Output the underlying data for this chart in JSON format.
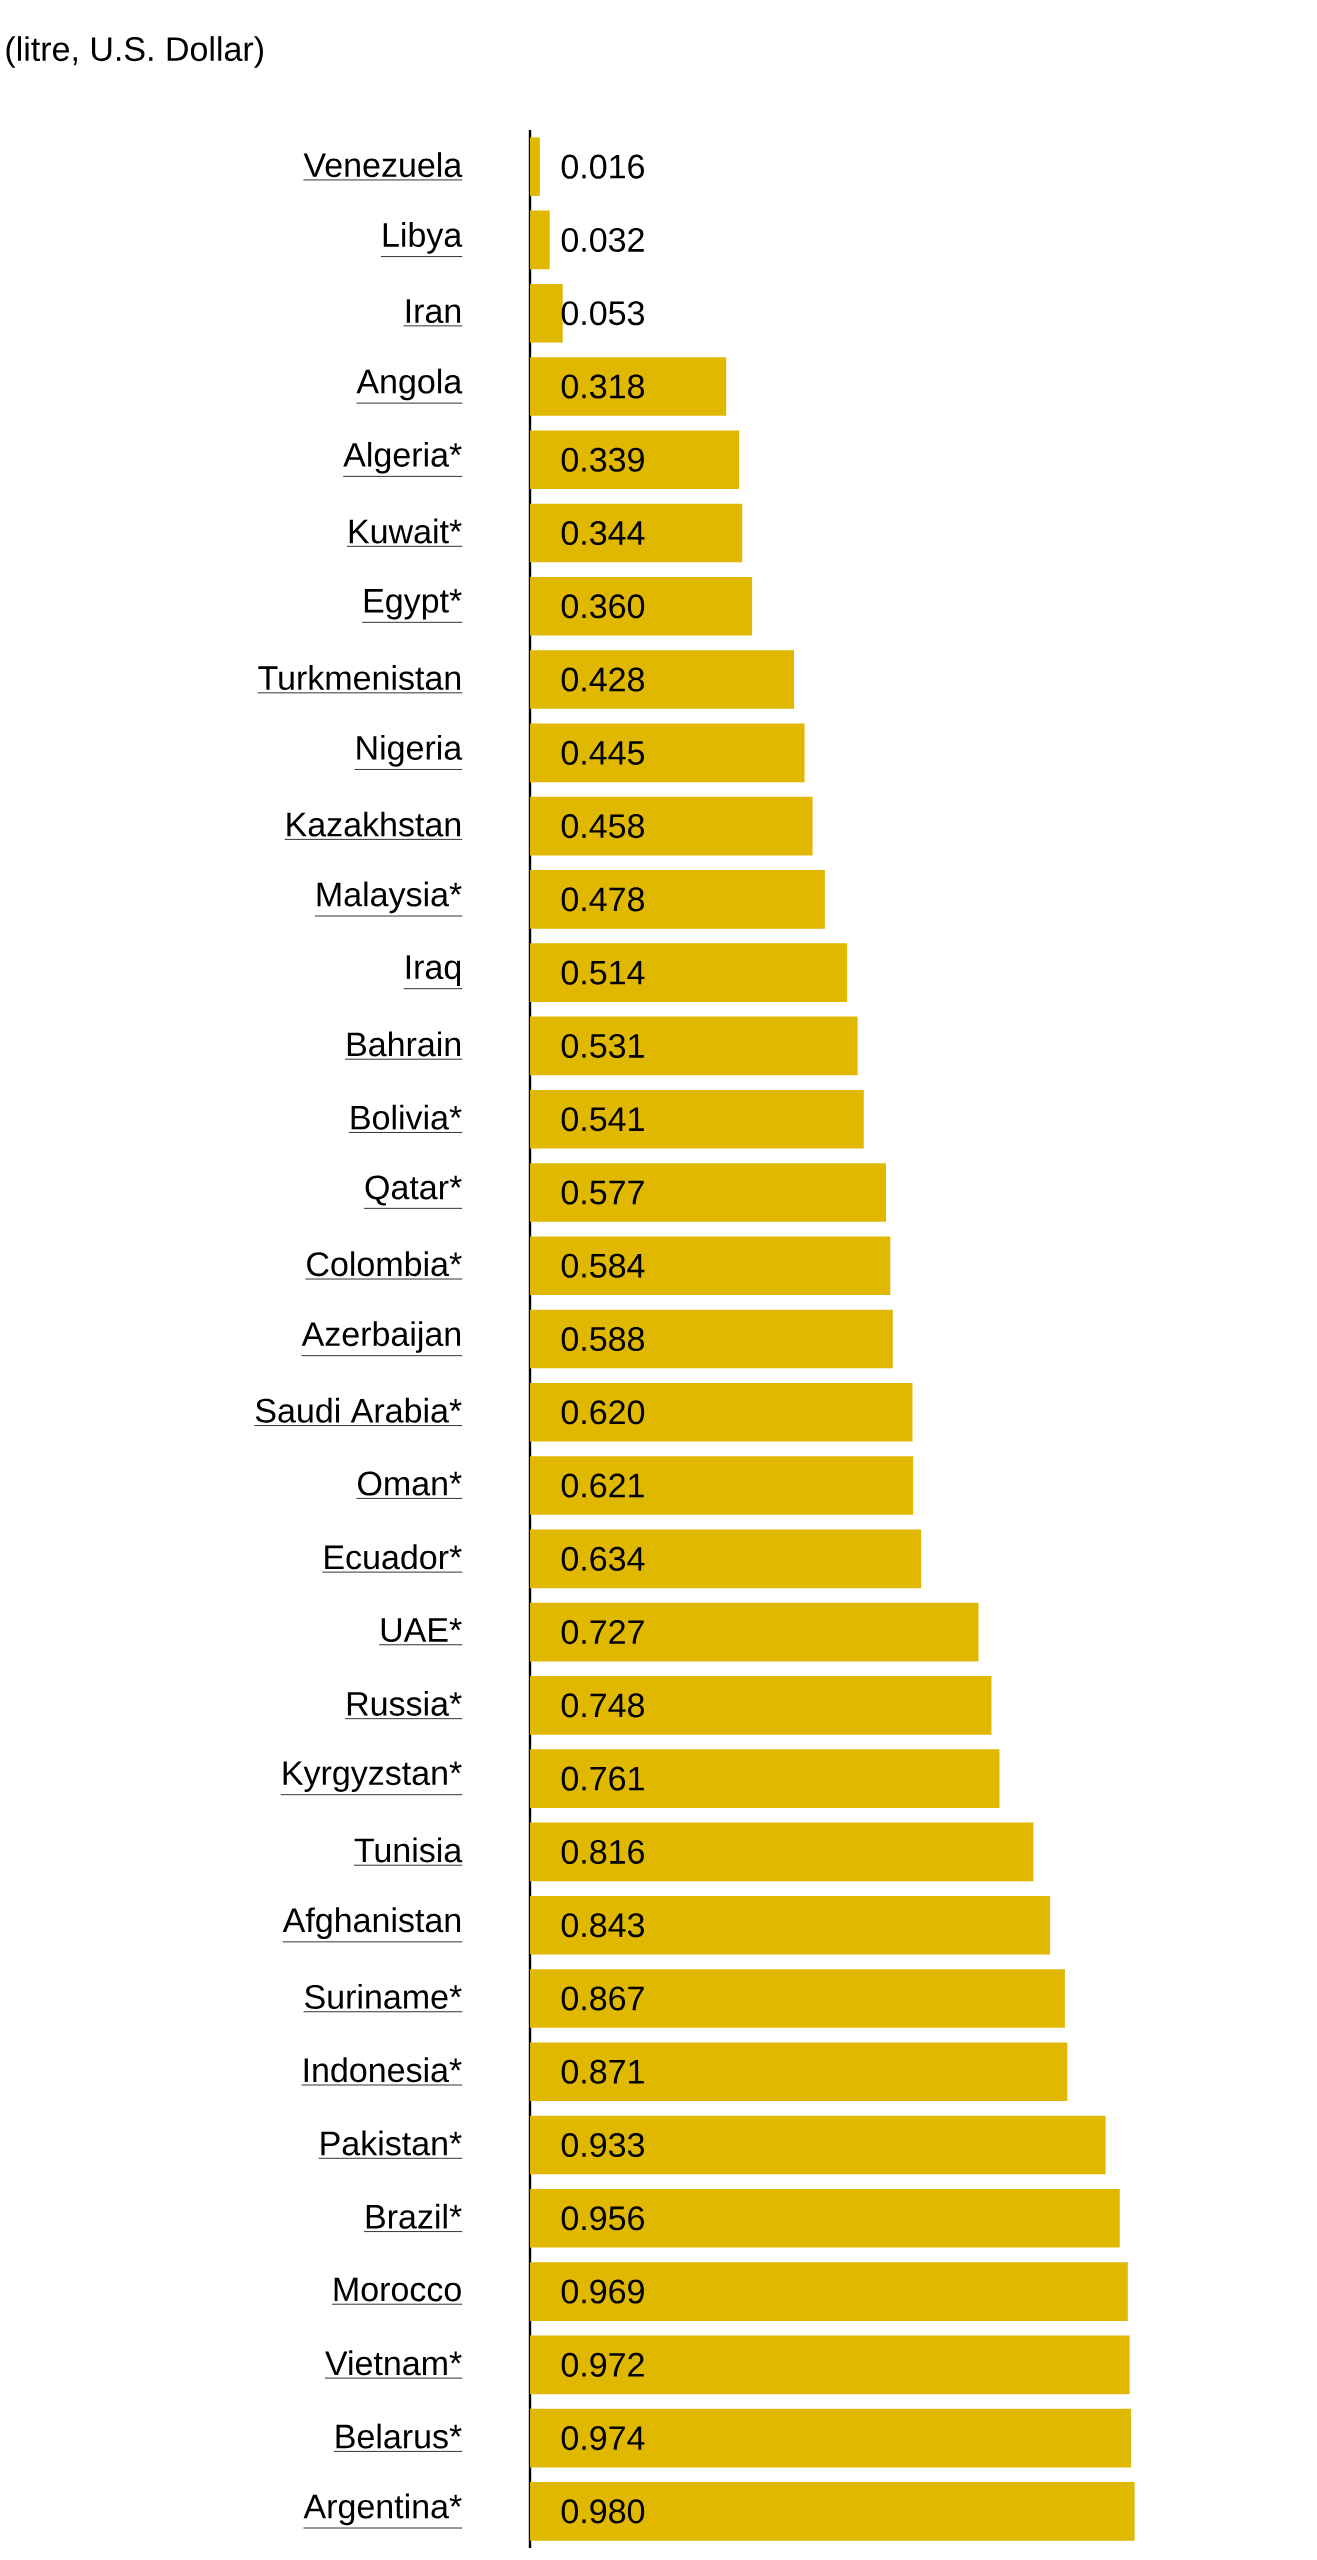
{
  "chart_data": {
    "type": "bar",
    "orientation": "horizontal",
    "subtitle": "(litre, U.S. Dollar)",
    "categories": [
      "Venezuela",
      "Libya",
      "Iran",
      "Angola",
      "Algeria*",
      "Kuwait*",
      "Egypt*",
      "Turkmenistan",
      "Nigeria",
      "Kazakhstan",
      "Malaysia*",
      "Iraq",
      "Bahrain",
      "Bolivia*",
      "Qatar*",
      "Colombia*",
      "Azerbaijan",
      "Saudi Arabia*",
      "Oman*",
      "Ecuador*",
      "UAE*",
      "Russia*",
      "Kyrgyzstan*",
      "Tunisia",
      "Afghanistan",
      "Suriname*",
      "Indonesia*",
      "Pakistan*",
      "Brazil*",
      "Morocco",
      "Vietnam*",
      "Belarus*",
      "Argentina*"
    ],
    "values": [
      0.016,
      0.032,
      0.053,
      0.318,
      0.339,
      0.344,
      0.36,
      0.428,
      0.445,
      0.458,
      0.478,
      0.514,
      0.531,
      0.541,
      0.577,
      0.584,
      0.588,
      0.62,
      0.621,
      0.634,
      0.727,
      0.748,
      0.761,
      0.816,
      0.843,
      0.867,
      0.871,
      0.933,
      0.956,
      0.969,
      0.972,
      0.974,
      0.98
    ],
    "value_labels": [
      "0.016",
      "0.032",
      "0.053",
      "0.318",
      "0.339",
      "0.344",
      "0.360",
      "0.428",
      "0.445",
      "0.458",
      "0.478",
      "0.514",
      "0.531",
      "0.541",
      "0.577",
      "0.584",
      "0.588",
      "0.620",
      "0.621",
      "0.634",
      "0.727",
      "0.748",
      "0.761",
      "0.816",
      "0.843",
      "0.867",
      "0.871",
      "0.933",
      "0.956",
      "0.969",
      "0.972",
      "0.974",
      "0.980"
    ],
    "color": "#e1b800"
  }
}
